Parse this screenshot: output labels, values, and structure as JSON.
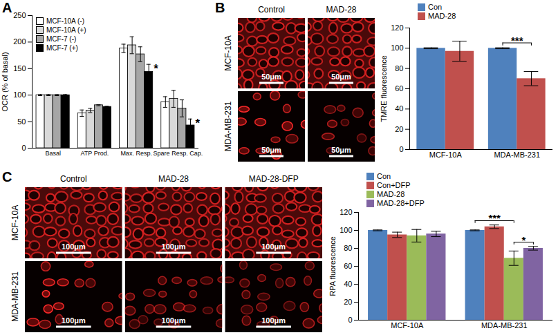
{
  "chart_data": [
    {
      "panel_label": "A",
      "type": "bar",
      "ylabel": "OCR (% of basal)",
      "categories": [
        "Basal",
        "ATP Prod.",
        "Max. Resp.",
        "Spare Resp. Cap."
      ],
      "series": [
        {
          "name": "MCF-10A (-)",
          "color": "#ffffff",
          "values": [
            100,
            66,
            188,
            87
          ],
          "errors": [
            1,
            6,
            8,
            10
          ]
        },
        {
          "name": "MCF-10A (+)",
          "color": "#d9d9d9",
          "values": [
            100,
            71,
            194,
            93
          ],
          "errors": [
            1,
            4,
            16,
            16
          ]
        },
        {
          "name": "MCF-7 (-)",
          "color": "#a6a6a6",
          "values": [
            100,
            81,
            177,
            75
          ],
          "errors": [
            1,
            1,
            14,
            16
          ]
        },
        {
          "name": "MCF-7 (+)",
          "color": "#000000",
          "values": [
            100,
            78,
            144,
            43
          ],
          "errors": [
            1,
            1,
            14,
            12
          ]
        }
      ],
      "ylim": [
        0,
        250
      ],
      "yticks": [
        0,
        50,
        100,
        150,
        200,
        250
      ],
      "legend": "top-left",
      "annotations": [
        {
          "category": "Max. Resp.",
          "series": "MCF-7 (+)",
          "text": "*"
        },
        {
          "category": "Spare Resp. Cap.",
          "series": "MCF-7 (+)",
          "text": "*"
        }
      ]
    },
    {
      "type": "bar",
      "ylabel": "TMRE fluorescence",
      "categories": [
        "MCF-10A",
        "MDA-MB-231"
      ],
      "series": [
        {
          "name": "Con",
          "color": "#4f81bd",
          "values": [
            100,
            100
          ],
          "errors": [
            0.5,
            0.5
          ]
        },
        {
          "name": "MAD-28",
          "color": "#c0504d",
          "values": [
            97,
            70
          ],
          "errors": [
            10,
            7
          ]
        }
      ],
      "ylim": [
        0,
        120
      ],
      "yticks": [
        0,
        20,
        40,
        60,
        80,
        100,
        120
      ],
      "legend": "top",
      "significance": [
        {
          "category": "MDA-MB-231",
          "from": "Con",
          "to": "MAD-28",
          "text": "***"
        }
      ]
    },
    {
      "type": "bar",
      "ylabel": "RPA fluorescence",
      "categories": [
        "MCF-10A",
        "MDA-MB-231"
      ],
      "series": [
        {
          "name": "Con",
          "color": "#4f81bd",
          "values": [
            100,
            100
          ],
          "errors": [
            0.5,
            0.5
          ]
        },
        {
          "name": "Con+DFP",
          "color": "#c0504d",
          "values": [
            95,
            104
          ],
          "errors": [
            3,
            2
          ]
        },
        {
          "name": "MAD-28",
          "color": "#9bbb59",
          "values": [
            94,
            69
          ],
          "errors": [
            7,
            8
          ]
        },
        {
          "name": "MAD-28+DFP",
          "color": "#8064a2",
          "values": [
            96,
            80
          ],
          "errors": [
            3,
            2
          ]
        }
      ],
      "ylim": [
        0,
        120
      ],
      "yticks": [
        0,
        20,
        40,
        60,
        80,
        100,
        120
      ],
      "legend": "top",
      "significance": [
        {
          "category": "MDA-MB-231",
          "from": "Con",
          "to": "MAD-28",
          "text": "***"
        },
        {
          "category": "MDA-MB-231",
          "from": "MAD-28",
          "to": "MAD-28+DFP",
          "text": "*"
        }
      ]
    }
  ],
  "image_panels": [
    {
      "panel_label": "B",
      "columns": [
        "Control",
        "MAD-28"
      ],
      "rows": [
        "MCF-10A",
        "MDA-MB-231"
      ],
      "scale_bar": "50μm"
    },
    {
      "panel_label": "C",
      "columns": [
        "Control",
        "MAD-28",
        "MAD-28-DFP"
      ],
      "rows": [
        "MCF-10A",
        "MDA-MB-231"
      ],
      "scale_bar": "100μm"
    }
  ]
}
